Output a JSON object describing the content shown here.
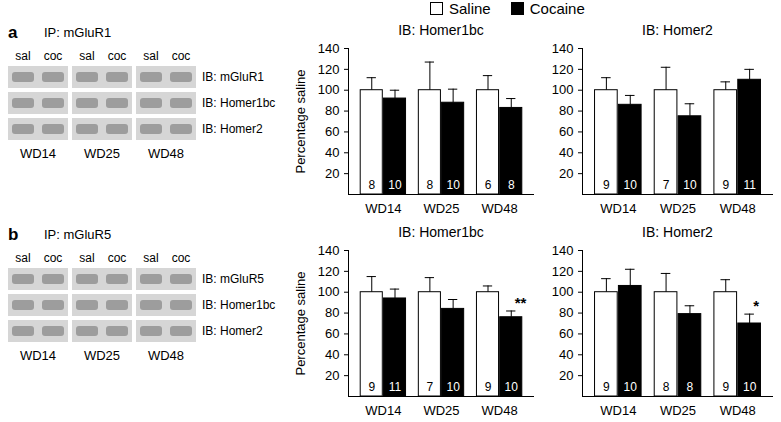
{
  "panels": [
    {
      "label": "a",
      "ip": "IP: mGluR1",
      "lanes": [
        "sal",
        "coc"
      ],
      "groups": [
        "WD14",
        "WD25",
        "WD48"
      ],
      "blots": [
        "IB: mGluR1",
        "IB: Homer1bc",
        "IB: Homer2"
      ]
    },
    {
      "label": "b",
      "ip": "IP: mGluR5",
      "lanes": [
        "sal",
        "coc"
      ],
      "groups": [
        "WD14",
        "WD25",
        "WD48"
      ],
      "blots": [
        "IB: mGluR5",
        "IB: Homer1bc",
        "IB: Homer2"
      ]
    }
  ],
  "chart_data": [
    {
      "type": "bar",
      "title": "IB: Homer1bc",
      "y_label": "Percentage saline",
      "legend": "top",
      "categories": [
        "WD14",
        "WD25",
        "WD48"
      ],
      "series": [
        {
          "name": "Saline",
          "color": "#ffffff",
          "values": [
            100,
            100,
            100
          ],
          "errors": [
            12,
            27,
            14
          ],
          "n": [
            8,
            8,
            6
          ]
        },
        {
          "name": "Cocaine",
          "color": "#000000",
          "values": [
            92,
            88,
            83
          ],
          "errors": [
            8,
            13,
            9
          ],
          "n": [
            10,
            10,
            8
          ]
        }
      ],
      "ylim": [
        0,
        140
      ],
      "yticks": [
        20,
        40,
        60,
        80,
        100,
        120,
        140
      ]
    },
    {
      "type": "bar",
      "title": "IB: Homer2",
      "categories": [
        "WD14",
        "WD25",
        "WD48"
      ],
      "series": [
        {
          "name": "Saline",
          "color": "#ffffff",
          "values": [
            100,
            100,
            100
          ],
          "errors": [
            12,
            22,
            8
          ],
          "n": [
            9,
            7,
            9
          ]
        },
        {
          "name": "Cocaine",
          "color": "#000000",
          "values": [
            86,
            75,
            110
          ],
          "errors": [
            9,
            12,
            10
          ],
          "n": [
            10,
            10,
            11
          ]
        }
      ],
      "ylim": [
        0,
        140
      ],
      "yticks": [
        20,
        40,
        60,
        80,
        100,
        120,
        140
      ]
    },
    {
      "type": "bar",
      "title": "IB: Homer1bc",
      "y_label": "Percentage saline",
      "categories": [
        "WD14",
        "WD25",
        "WD48"
      ],
      "series": [
        {
          "name": "Saline",
          "color": "#ffffff",
          "values": [
            100,
            100,
            100
          ],
          "errors": [
            15,
            14,
            6
          ],
          "n": [
            9,
            7,
            9
          ]
        },
        {
          "name": "Cocaine",
          "color": "#000000",
          "values": [
            94,
            84,
            76
          ],
          "errors": [
            9,
            9,
            6
          ],
          "n": [
            11,
            10,
            10
          ]
        }
      ],
      "annotations": [
        {
          "category": "WD48",
          "series": "Cocaine",
          "text": "**"
        }
      ],
      "ylim": [
        0,
        140
      ],
      "yticks": [
        20,
        40,
        60,
        80,
        100,
        120,
        140
      ]
    },
    {
      "type": "bar",
      "title": "IB: Homer2",
      "categories": [
        "WD14",
        "WD25",
        "WD48"
      ],
      "series": [
        {
          "name": "Saline",
          "color": "#ffffff",
          "values": [
            100,
            100,
            100
          ],
          "errors": [
            13,
            18,
            12
          ],
          "n": [
            9,
            8,
            9
          ]
        },
        {
          "name": "Cocaine",
          "color": "#000000",
          "values": [
            106,
            79,
            70
          ],
          "errors": [
            16,
            8,
            9
          ],
          "n": [
            10,
            8,
            10
          ]
        }
      ],
      "annotations": [
        {
          "category": "WD48",
          "series": "Cocaine",
          "text": "*"
        }
      ],
      "ylim": [
        0,
        140
      ],
      "yticks": [
        20,
        40,
        60,
        80,
        100,
        120,
        140
      ]
    }
  ]
}
